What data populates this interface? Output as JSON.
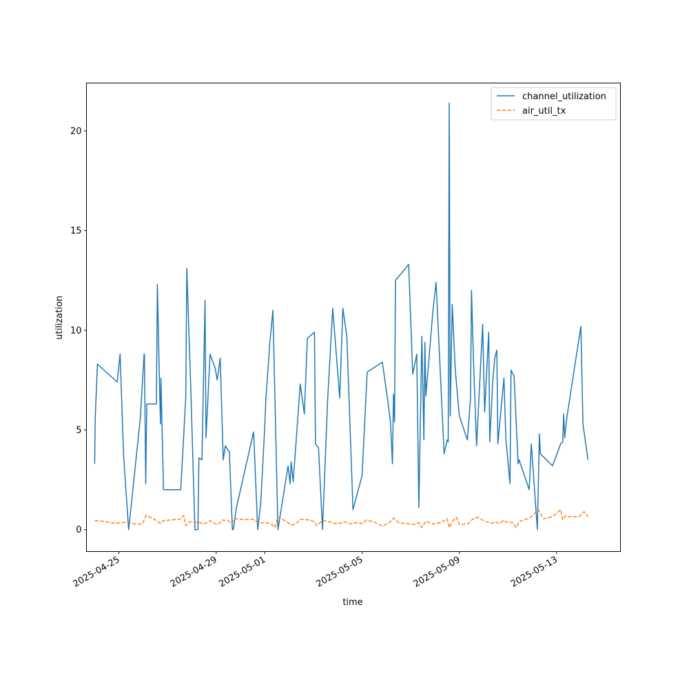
{
  "chart_data": {
    "type": "line",
    "xlabel": "time",
    "ylabel": "utilization",
    "xlim": [
      "2025-04-23T16:00",
      "2025-05-15T15:00"
    ],
    "ylim": [
      -1.1,
      22.4
    ],
    "x_ticks": [
      "2025-04-25",
      "2025-04-29",
      "2025-05-01",
      "2025-05-05",
      "2025-05-09",
      "2025-05-13"
    ],
    "y_ticks": [
      0,
      5,
      10,
      15,
      20
    ],
    "grid": false,
    "legend_position": "top-right",
    "colors": {
      "channel_utilization": "#1f77b4",
      "air_util_tx": "#ff7f0e"
    },
    "series": [
      {
        "name": "channel_utilization",
        "style": "solid",
        "points": [
          [
            "2025-04-24T00:04",
            3.3
          ],
          [
            "2025-04-24T00:40",
            5.6
          ],
          [
            "2025-04-24T02:48",
            8.3
          ],
          [
            "2025-04-24T22:20",
            7.4
          ],
          [
            "2025-04-25T01:12",
            8.8
          ],
          [
            "2025-04-25T04:40",
            3.7
          ],
          [
            "2025-04-25T09:36",
            0.0
          ],
          [
            "2025-04-25T21:10",
            5.6
          ],
          [
            "2025-04-26T00:50",
            8.8
          ],
          [
            "2025-04-26T01:10",
            8.8
          ],
          [
            "2025-04-26T02:30",
            2.3
          ],
          [
            "2025-04-26T03:30",
            6.3
          ],
          [
            "2025-04-26T13:00",
            6.3
          ],
          [
            "2025-04-26T14:00",
            12.3
          ],
          [
            "2025-04-26T16:00",
            7.5
          ],
          [
            "2025-04-26T17:00",
            5.3
          ],
          [
            "2025-04-26T17:30",
            7.6
          ],
          [
            "2025-04-26T20:00",
            2.0
          ],
          [
            "2025-04-27T13:00",
            2.0
          ],
          [
            "2025-04-27T18:00",
            6.6
          ],
          [
            "2025-04-27T19:00",
            13.1
          ],
          [
            "2025-04-27T23:00",
            7.0
          ],
          [
            "2025-04-28T03:00",
            0.0
          ],
          [
            "2025-04-28T06:00",
            0.0
          ],
          [
            "2025-04-28T07:00",
            3.6
          ],
          [
            "2025-04-28T10:00",
            3.5
          ],
          [
            "2025-04-28T13:00",
            11.5
          ],
          [
            "2025-04-28T14:00",
            4.6
          ],
          [
            "2025-04-28T18:00",
            8.8
          ],
          [
            "2025-04-28T23:00",
            8.1
          ],
          [
            "2025-04-29T01:00",
            7.5
          ],
          [
            "2025-04-29T04:00",
            8.6
          ],
          [
            "2025-04-29T07:00",
            3.5
          ],
          [
            "2025-04-29T09:00",
            4.2
          ],
          [
            "2025-04-29T13:00",
            3.9
          ],
          [
            "2025-04-29T16:00",
            0.0
          ],
          [
            "2025-04-29T17:00",
            0.0
          ],
          [
            "2025-04-29T20:00",
            1.1
          ],
          [
            "2025-04-30T13:00",
            4.9
          ],
          [
            "2025-04-30T17:00",
            0.0
          ],
          [
            "2025-04-30T20:00",
            1.3
          ],
          [
            "2025-05-01T00:00",
            5.2
          ],
          [
            "2025-05-01T01:00",
            6.5
          ],
          [
            "2025-05-01T05:00",
            9.4
          ],
          [
            "2025-05-01T08:00",
            11.0
          ],
          [
            "2025-05-01T13:00",
            0.0
          ],
          [
            "2025-05-01T23:00",
            3.2
          ],
          [
            "2025-05-02T01:00",
            2.3
          ],
          [
            "2025-05-02T02:00",
            3.4
          ],
          [
            "2025-05-02T04:00",
            2.4
          ],
          [
            "2025-05-02T11:00",
            7.3
          ],
          [
            "2025-05-02T15:00",
            5.8
          ],
          [
            "2025-05-02T18:00",
            9.6
          ],
          [
            "2025-05-03T01:00",
            9.9
          ],
          [
            "2025-05-03T02:00",
            4.3
          ],
          [
            "2025-05-03T05:00",
            4.1
          ],
          [
            "2025-05-03T09:00",
            0.0
          ],
          [
            "2025-05-03T14:00",
            6.5
          ],
          [
            "2025-05-03T19:00",
            11.1
          ],
          [
            "2025-05-04T02:00",
            6.6
          ],
          [
            "2025-05-04T05:00",
            11.1
          ],
          [
            "2025-05-04T09:00",
            9.7
          ],
          [
            "2025-05-04T15:00",
            1.0
          ],
          [
            "2025-05-05T00:00",
            2.7
          ],
          [
            "2025-05-05T05:00",
            7.9
          ],
          [
            "2025-05-05T20:00",
            8.4
          ],
          [
            "2025-05-06T01:00",
            6.6
          ],
          [
            "2025-05-06T04:00",
            5.4
          ],
          [
            "2025-05-06T06:00",
            3.3
          ],
          [
            "2025-05-06T07:00",
            6.8
          ],
          [
            "2025-05-06T08:00",
            5.4
          ],
          [
            "2025-05-06T09:00",
            12.5
          ],
          [
            "2025-05-06T22:00",
            13.3
          ],
          [
            "2025-05-07T02:00",
            7.8
          ],
          [
            "2025-05-07T06:00",
            8.8
          ],
          [
            "2025-05-07T08:00",
            1.1
          ],
          [
            "2025-05-07T11:00",
            9.7
          ],
          [
            "2025-05-07T13:00",
            4.5
          ],
          [
            "2025-05-07T14:00",
            9.4
          ],
          [
            "2025-05-07T15:00",
            6.7
          ],
          [
            "2025-05-07T22:00",
            11.0
          ],
          [
            "2025-05-08T01:00",
            12.4
          ],
          [
            "2025-05-08T09:00",
            3.8
          ],
          [
            "2025-05-08T12:00",
            4.5
          ],
          [
            "2025-05-08T13:00",
            4.4
          ],
          [
            "2025-05-08T14:00",
            21.4
          ],
          [
            "2025-05-08T15:00",
            5.7
          ],
          [
            "2025-05-08T17:00",
            11.3
          ],
          [
            "2025-05-08T20:00",
            8.0
          ],
          [
            "2025-05-09T00:00",
            5.7
          ],
          [
            "2025-05-09T08:00",
            4.5
          ],
          [
            "2025-05-09T11:00",
            6.6
          ],
          [
            "2025-05-09T12:00",
            12.0
          ],
          [
            "2025-05-09T14:00",
            8.4
          ],
          [
            "2025-05-09T17:00",
            4.2
          ],
          [
            "2025-05-09T23:00",
            10.3
          ],
          [
            "2025-05-10T01:00",
            5.9
          ],
          [
            "2025-05-10T05:00",
            9.9
          ],
          [
            "2025-05-10T06:00",
            4.4
          ],
          [
            "2025-05-10T09:00",
            7.5
          ],
          [
            "2025-05-10T11:00",
            8.6
          ],
          [
            "2025-05-10T13:00",
            9.0
          ],
          [
            "2025-05-10T14:00",
            4.3
          ],
          [
            "2025-05-10T18:00",
            6.5
          ],
          [
            "2025-05-10T20:00",
            7.6
          ],
          [
            "2025-05-10T22:00",
            4.5
          ],
          [
            "2025-05-11T02:00",
            2.3
          ],
          [
            "2025-05-11T03:00",
            8.0
          ],
          [
            "2025-05-11T06:00",
            7.7
          ],
          [
            "2025-05-11T10:00",
            3.3
          ],
          [
            "2025-05-11T11:00",
            3.5
          ],
          [
            "2025-05-11T21:00",
            2.0
          ],
          [
            "2025-05-11T23:00",
            4.3
          ],
          [
            "2025-05-12T05:00",
            0.0
          ],
          [
            "2025-05-12T07:00",
            4.8
          ],
          [
            "2025-05-12T08:00",
            3.8
          ],
          [
            "2025-05-12T20:00",
            3.2
          ],
          [
            "2025-05-13T04:00",
            4.3
          ],
          [
            "2025-05-13T06:00",
            4.4
          ],
          [
            "2025-05-13T07:00",
            5.8
          ],
          [
            "2025-05-13T08:00",
            4.6
          ],
          [
            "2025-05-13T10:00",
            5.6
          ],
          [
            "2025-05-14T00:00",
            10.2
          ],
          [
            "2025-05-14T02:00",
            5.3
          ],
          [
            "2025-05-14T07:00",
            3.5
          ]
        ]
      },
      {
        "name": "air_util_tx",
        "style": "dashed",
        "points": [
          [
            "2025-04-24T00:04",
            0.45
          ],
          [
            "2025-04-24T08:00",
            0.42
          ],
          [
            "2025-04-24T20:00",
            0.32
          ],
          [
            "2025-04-25T03:00",
            0.34
          ],
          [
            "2025-04-25T08:00",
            0.38
          ],
          [
            "2025-04-25T16:00",
            0.28
          ],
          [
            "2025-04-25T23:00",
            0.28
          ],
          [
            "2025-04-26T03:00",
            0.72
          ],
          [
            "2025-04-26T10:00",
            0.55
          ],
          [
            "2025-04-26T15:00",
            0.38
          ],
          [
            "2025-04-26T17:00",
            0.3
          ],
          [
            "2025-04-26T20:00",
            0.45
          ],
          [
            "2025-04-27T12:00",
            0.52
          ],
          [
            "2025-04-27T16:00",
            0.7
          ],
          [
            "2025-04-27T18:00",
            0.2
          ],
          [
            "2025-04-27T22:00",
            0.4
          ],
          [
            "2025-04-28T08:00",
            0.35
          ],
          [
            "2025-04-28T12:00",
            0.28
          ],
          [
            "2025-04-28T18:00",
            0.45
          ],
          [
            "2025-04-28T23:00",
            0.3
          ],
          [
            "2025-04-29T02:00",
            0.25
          ],
          [
            "2025-04-29T06:00",
            0.48
          ],
          [
            "2025-04-29T12:00",
            0.45
          ],
          [
            "2025-04-29T15:00",
            0.3
          ],
          [
            "2025-04-29T18:00",
            0.55
          ],
          [
            "2025-04-30T06:00",
            0.5
          ],
          [
            "2025-04-30T12:00",
            0.52
          ],
          [
            "2025-04-30T17:00",
            0.35
          ],
          [
            "2025-05-01T03:00",
            0.34
          ],
          [
            "2025-05-01T07:00",
            0.25
          ],
          [
            "2025-05-01T10:00",
            0.1
          ],
          [
            "2025-05-01T13:00",
            0.65
          ],
          [
            "2025-05-01T23:00",
            0.35
          ],
          [
            "2025-05-02T02:00",
            0.22
          ],
          [
            "2025-05-02T07:00",
            0.3
          ],
          [
            "2025-05-02T11:00",
            0.52
          ],
          [
            "2025-05-02T20:00",
            0.48
          ],
          [
            "2025-05-03T01:00",
            0.4
          ],
          [
            "2025-05-03T03:00",
            0.2
          ],
          [
            "2025-05-03T09:00",
            0.45
          ],
          [
            "2025-05-03T16:00",
            0.4
          ],
          [
            "2025-05-03T21:00",
            0.3
          ],
          [
            "2025-05-04T04:00",
            0.32
          ],
          [
            "2025-05-04T06:00",
            0.4
          ],
          [
            "2025-05-04T13:00",
            0.28
          ],
          [
            "2025-05-04T18:00",
            0.35
          ],
          [
            "2025-05-05T00:00",
            0.3
          ],
          [
            "2025-05-05T04:00",
            0.48
          ],
          [
            "2025-05-05T12:00",
            0.38
          ],
          [
            "2025-05-05T20:00",
            0.18
          ],
          [
            "2025-05-06T03:00",
            0.35
          ],
          [
            "2025-05-06T07:00",
            0.58
          ],
          [
            "2025-05-06T12:00",
            0.35
          ],
          [
            "2025-05-06T20:00",
            0.3
          ],
          [
            "2025-05-07T03:00",
            0.25
          ],
          [
            "2025-05-07T08:00",
            0.35
          ],
          [
            "2025-05-07T11:00",
            0.1
          ],
          [
            "2025-05-07T15:00",
            0.42
          ],
          [
            "2025-05-07T22:00",
            0.28
          ],
          [
            "2025-05-08T06:00",
            0.35
          ],
          [
            "2025-05-08T12:00",
            0.55
          ],
          [
            "2025-05-08T14:00",
            0.1
          ],
          [
            "2025-05-08T17:00",
            0.4
          ],
          [
            "2025-05-08T21:00",
            0.62
          ],
          [
            "2025-05-09T00:00",
            0.25
          ],
          [
            "2025-05-09T09:00",
            0.3
          ],
          [
            "2025-05-09T13:00",
            0.52
          ],
          [
            "2025-05-09T18:00",
            0.62
          ],
          [
            "2025-05-10T01:00",
            0.42
          ],
          [
            "2025-05-10T08:00",
            0.32
          ],
          [
            "2025-05-10T12:00",
            0.38
          ],
          [
            "2025-05-10T16:00",
            0.3
          ],
          [
            "2025-05-10T20:00",
            0.48
          ],
          [
            "2025-05-10T22:00",
            0.38
          ],
          [
            "2025-05-11T05:00",
            0.35
          ],
          [
            "2025-05-11T08:00",
            0.1
          ],
          [
            "2025-05-11T11:00",
            0.4
          ],
          [
            "2025-05-11T22:00",
            0.6
          ],
          [
            "2025-05-12T03:00",
            0.85
          ],
          [
            "2025-05-12T06:00",
            1.0
          ],
          [
            "2025-05-12T11:00",
            0.55
          ],
          [
            "2025-05-12T20:00",
            0.65
          ],
          [
            "2025-05-13T04:00",
            1.0
          ],
          [
            "2025-05-13T06:00",
            0.5
          ],
          [
            "2025-05-13T09:00",
            0.7
          ],
          [
            "2025-05-13T12:00",
            0.65
          ],
          [
            "2025-05-13T22:00",
            0.65
          ],
          [
            "2025-05-14T03:00",
            0.9
          ],
          [
            "2025-05-14T07:00",
            0.65
          ]
        ]
      }
    ]
  }
}
